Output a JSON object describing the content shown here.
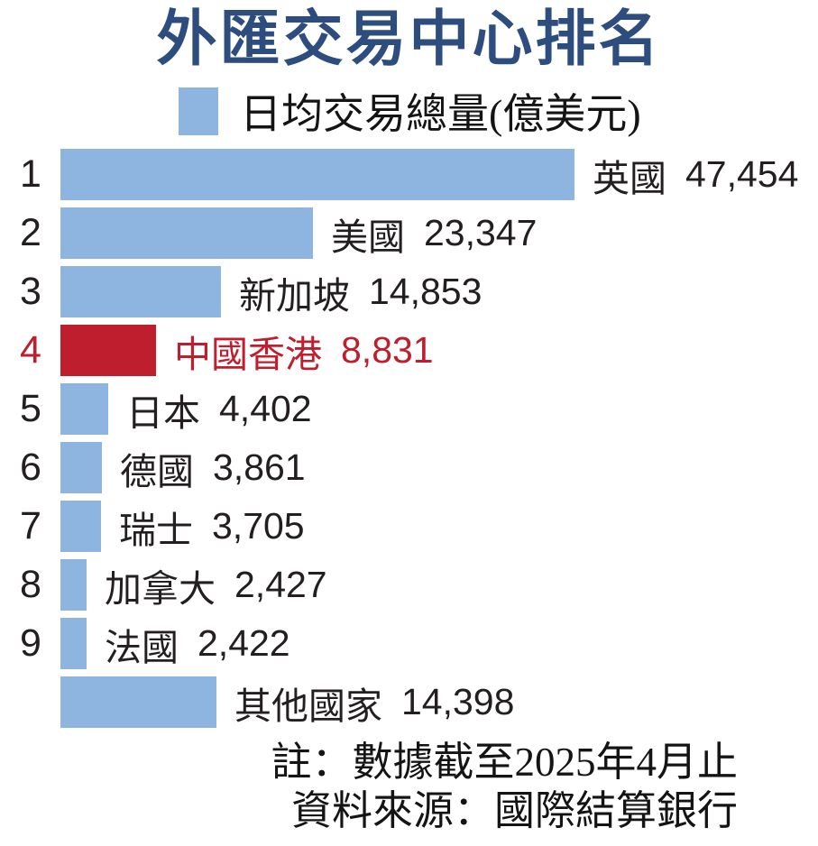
{
  "title": "外匯交易中心排名",
  "legend": {
    "label": "日均交易總量(億美元)",
    "swatch_color": "#8db5df"
  },
  "chart_data": {
    "type": "bar",
    "orientation": "horizontal",
    "title": "外匯交易中心排名",
    "legend": [
      "日均交易總量(億美元)"
    ],
    "unit": "億美元",
    "xlim": [
      0,
      47454
    ],
    "grid": false,
    "bar_color": "#8db5df",
    "highlight_color": "#be1e2d",
    "categories": [
      "英國",
      "美國",
      "新加坡",
      "中國香港",
      "日本",
      "德國",
      "瑞士",
      "加拿大",
      "法國",
      "其他國家"
    ],
    "values": [
      47454,
      23347,
      14853,
      8831,
      4402,
      3861,
      3705,
      2427,
      2422,
      14398
    ],
    "rows": [
      {
        "rank": "1",
        "name": "英國",
        "value": 47454,
        "value_label": "47,454",
        "highlight": false
      },
      {
        "rank": "2",
        "name": "美國",
        "value": 23347,
        "value_label": "23,347",
        "highlight": false
      },
      {
        "rank": "3",
        "name": "新加坡",
        "value": 14853,
        "value_label": "14,853",
        "highlight": false
      },
      {
        "rank": "4",
        "name": "中國香港",
        "value": 8831,
        "value_label": "8,831",
        "highlight": true
      },
      {
        "rank": "5",
        "name": "日本",
        "value": 4402,
        "value_label": "4,402",
        "highlight": false
      },
      {
        "rank": "6",
        "name": "德國",
        "value": 3861,
        "value_label": "3,861",
        "highlight": false
      },
      {
        "rank": "7",
        "name": "瑞士",
        "value": 3705,
        "value_label": "3,705",
        "highlight": false
      },
      {
        "rank": "8",
        "name": "加拿大",
        "value": 2427,
        "value_label": "2,427",
        "highlight": false
      },
      {
        "rank": "9",
        "name": "法國",
        "value": 2422,
        "value_label": "2,422",
        "highlight": false
      },
      {
        "rank": "",
        "name": "其他國家",
        "value": 14398,
        "value_label": "14,398",
        "highlight": false
      }
    ]
  },
  "notes": {
    "note": "註：數據截至2025年4月止",
    "source": "資料來源：國際結算銀行"
  },
  "colors": {
    "title": "#2e4d7f",
    "text": "#231f20",
    "bar": "#8db5df",
    "highlight": "#be1e2d",
    "background": "#ffffff"
  }
}
